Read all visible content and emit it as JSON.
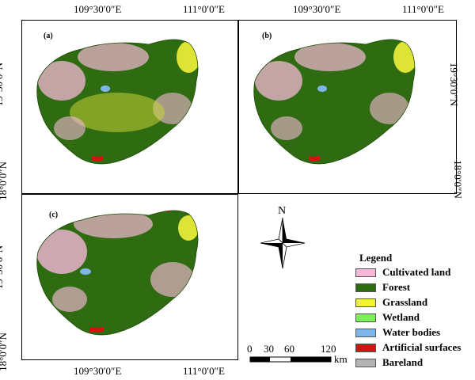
{
  "panels": [
    {
      "label": "(a)"
    },
    {
      "label": "(b)"
    },
    {
      "label": "(c)"
    }
  ],
  "coords": {
    "lon_left": "109°30′0″E",
    "lon_right": "111°0′0″E",
    "lat_top": "19°30′0″N",
    "lat_bottom": "18°0′0″N"
  },
  "north": {
    "label": "N"
  },
  "legend": {
    "title": "Legend",
    "items": [
      {
        "label": "Cultivated land",
        "color": "#f5b8d8"
      },
      {
        "label": "Forest",
        "color": "#2f6b10"
      },
      {
        "label": "Grassland",
        "color": "#f2f23a"
      },
      {
        "label": "Wetland",
        "color": "#7cf05a"
      },
      {
        "label": "Water bodies",
        "color": "#7fb6ea"
      },
      {
        "label": "Artificial surfaces",
        "color": "#d31212"
      },
      {
        "label": "Bareland",
        "color": "#b4b4b4"
      }
    ]
  },
  "scale": {
    "ticks": [
      "0",
      "30",
      "60",
      "120"
    ],
    "unit": "km"
  }
}
